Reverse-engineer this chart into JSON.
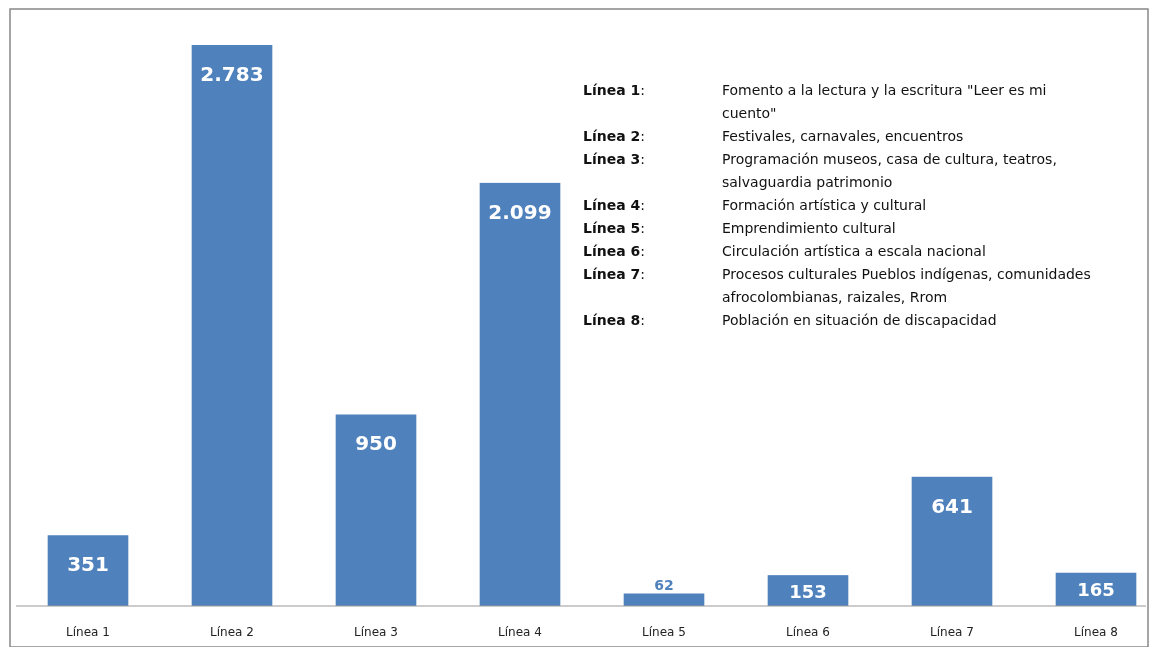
{
  "chart_data": {
    "type": "bar",
    "categories": [
      "Línea 1",
      "Línea 2",
      "Línea 3",
      "Línea 4",
      "Línea 5",
      "Línea 6",
      "Línea 7",
      "Línea 8"
    ],
    "values": [
      351,
      2783,
      950,
      2099,
      62,
      153,
      641,
      165
    ],
    "value_labels": [
      "351",
      "2.783",
      "950",
      "2.099",
      "62",
      "153",
      "641",
      "165"
    ],
    "color": "#4f81bd",
    "relative": false,
    "annotations": [
      "Línea 1: Fomento a la lectura y la escritura \"Leer es mi  cuento\"",
      "Línea 2: Festivales, carnavales, encuentros",
      "Línea 3: Programación museos, casa de cultura, teatros, salvaguardia patrimonio",
      "Línea 4: Formación artística y cultural",
      "Línea 5: Emprendimiento cultural",
      "Línea 6: Circulación artística a escala nacional",
      "Línea 7: Procesos culturales Pueblos indígenas, comunidades afrocolombianas, raizales, Rrom",
      "Línea 8: Población en situación de discapacidad"
    ]
  }
}
